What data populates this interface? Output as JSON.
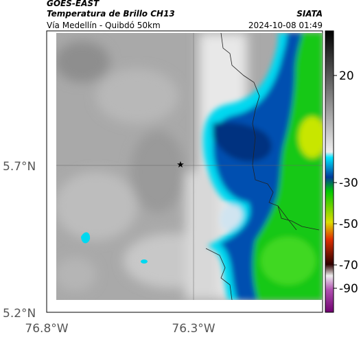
{
  "header": {
    "satellite": "GOES-EAST",
    "product": "Temperatura de Brillo CH13",
    "region": "Vía Medellín - Quibdó 50km",
    "source": "SIATA",
    "timestamp": "2024-10-08 01:49"
  },
  "map": {
    "lat_labels": [
      "5.7°N",
      "5.2°N"
    ],
    "lon_labels": [
      "76.8°W",
      "76.3°W"
    ]
  },
  "colorbar": {
    "ticks": [
      20,
      -30,
      -50,
      -70,
      -90
    ]
  }
}
